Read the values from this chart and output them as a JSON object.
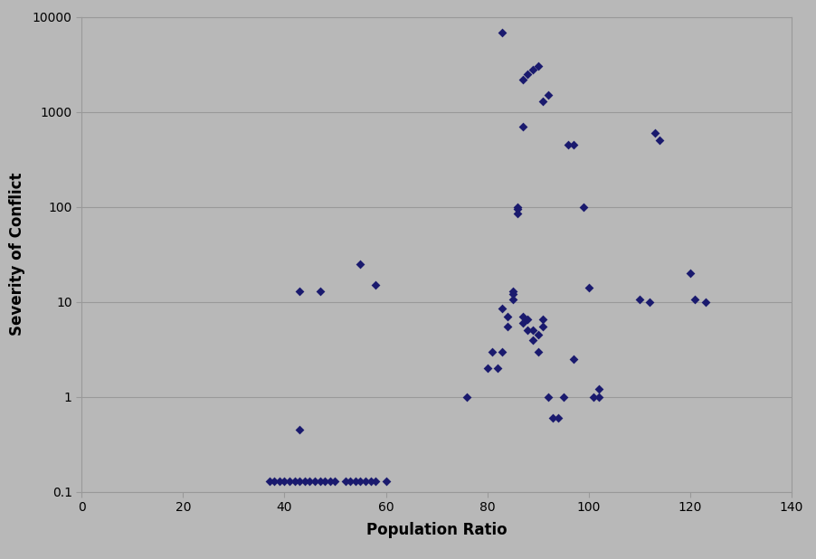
{
  "scatter_points": [
    [
      37,
      0.13
    ],
    [
      38,
      0.13
    ],
    [
      39,
      0.13
    ],
    [
      40,
      0.13
    ],
    [
      41,
      0.13
    ],
    [
      42,
      0.13
    ],
    [
      43,
      0.13
    ],
    [
      44,
      0.13
    ],
    [
      45,
      0.13
    ],
    [
      46,
      0.13
    ],
    [
      47,
      0.13
    ],
    [
      48,
      0.13
    ],
    [
      49,
      0.13
    ],
    [
      50,
      0.13
    ],
    [
      52,
      0.13
    ],
    [
      53,
      0.13
    ],
    [
      54,
      0.13
    ],
    [
      55,
      0.13
    ],
    [
      56,
      0.13
    ],
    [
      57,
      0.13
    ],
    [
      58,
      0.13
    ],
    [
      60,
      0.13
    ],
    [
      43,
      13
    ],
    [
      47,
      13
    ],
    [
      55,
      25
    ],
    [
      58,
      15
    ],
    [
      43,
      0.45
    ],
    [
      76,
      1.0
    ],
    [
      80,
      2.0
    ],
    [
      81,
      3.0
    ],
    [
      82,
      2.0
    ],
    [
      83,
      3.0
    ],
    [
      83,
      8.5
    ],
    [
      84,
      5.5
    ],
    [
      84,
      7.0
    ],
    [
      85,
      10.5
    ],
    [
      85,
      12.0
    ],
    [
      85,
      13.0
    ],
    [
      86,
      85.0
    ],
    [
      86,
      95.0
    ],
    [
      86,
      100.0
    ],
    [
      87,
      6.0
    ],
    [
      87,
      7.0
    ],
    [
      88,
      5.0
    ],
    [
      88,
      6.5
    ],
    [
      89,
      4.0
    ],
    [
      89,
      5.0
    ],
    [
      90,
      3.0
    ],
    [
      90,
      4.5
    ],
    [
      91,
      6.5
    ],
    [
      91,
      5.5
    ],
    [
      92,
      1.0
    ],
    [
      93,
      0.6
    ],
    [
      94,
      0.6
    ],
    [
      95,
      1.0
    ],
    [
      97,
      2.5
    ],
    [
      99,
      100.0
    ],
    [
      100,
      14.0
    ],
    [
      83,
      6800.0
    ],
    [
      87,
      2200.0
    ],
    [
      88,
      2500.0
    ],
    [
      89,
      2800.0
    ],
    [
      90,
      3000.0
    ],
    [
      91,
      1300.0
    ],
    [
      92,
      1500.0
    ],
    [
      87,
      700.0
    ],
    [
      96,
      450.0
    ],
    [
      97,
      450.0
    ],
    [
      101,
      1.0
    ],
    [
      102,
      1.2
    ],
    [
      102,
      1.0
    ],
    [
      110,
      10.5
    ],
    [
      112,
      10.0
    ],
    [
      113,
      600.0
    ],
    [
      114,
      500.0
    ],
    [
      120,
      20.0
    ],
    [
      121,
      10.5
    ],
    [
      123,
      10.0
    ]
  ],
  "marker_color": "#1a1a6e",
  "background_color": "#b8b8b8",
  "xlabel": "Population Ratio",
  "ylabel": "Severity of Conflict",
  "xlim": [
    0,
    140
  ],
  "ylim": [
    0.1,
    10000
  ],
  "marker_size": 5,
  "grid_color": "#999999"
}
